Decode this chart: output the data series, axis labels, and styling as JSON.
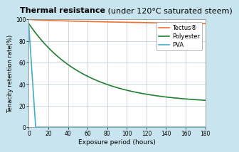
{
  "title_bold": "Thermal resistance",
  "title_normal": " (under 120°C saturated steem)",
  "xlabel": "Exposure period (hours)",
  "ylabel": "Tenacity retention rate(%)",
  "bg_color": "#c8e4ef",
  "plot_bg_color": "#ffffff",
  "xlim": [
    0,
    180
  ],
  "ylim": [
    0,
    100
  ],
  "xticks": [
    0,
    20,
    40,
    60,
    80,
    100,
    120,
    140,
    160,
    180
  ],
  "yticks": [
    0,
    20,
    40,
    60,
    80,
    100
  ],
  "tectus_color": "#f07030",
  "polyester_color": "#208030",
  "pva_color": "#40b0c8",
  "legend_labels": [
    "Tectus®",
    "Polyester",
    "PVA"
  ],
  "tectus_start": 100,
  "tectus_end": 96,
  "polyester_start": 96,
  "polyester_end": 22,
  "pva_start": 95,
  "pva_drop_x": 7
}
